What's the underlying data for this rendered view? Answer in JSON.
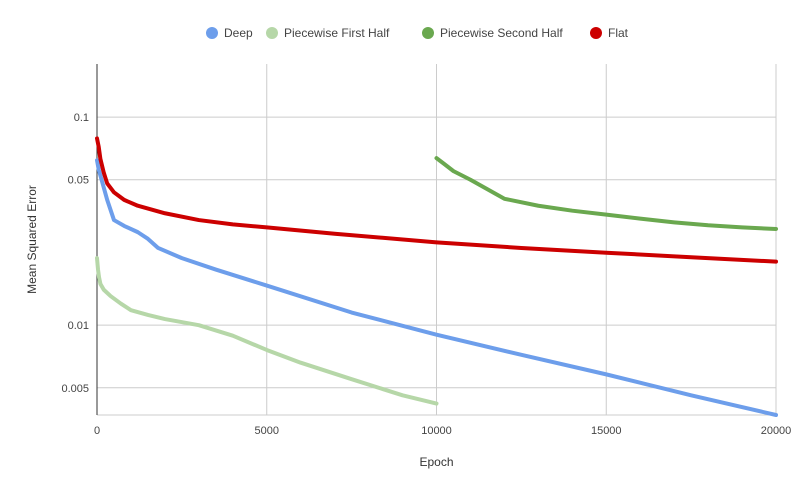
{
  "chart_data": {
    "type": "line",
    "title": "",
    "xlabel": "Epoch",
    "ylabel": "Mean Squared Error",
    "x_scale": "linear",
    "y_scale": "log",
    "xlim": [
      0,
      20000
    ],
    "ylim": [
      0.0037,
      0.18
    ],
    "x_ticks": [
      0,
      5000,
      10000,
      15000,
      20000
    ],
    "x_tick_labels": [
      "0",
      "5000",
      "10000",
      "15000",
      "20000"
    ],
    "y_ticks": [
      0.005,
      0.01,
      0.05,
      0.1
    ],
    "y_tick_labels": [
      "0.005",
      "0.01",
      "0.05",
      "0.1"
    ],
    "grid": true,
    "legend": "top-center",
    "series": [
      {
        "name": "Deep",
        "color": "#6d9eeb",
        "x": [
          0,
          50,
          150,
          300,
          500,
          800,
          1200,
          1500,
          1800,
          2500,
          3500,
          5000,
          7500,
          10000,
          12500,
          15000,
          17500,
          20000
        ],
        "y": [
          0.062,
          0.056,
          0.049,
          0.04,
          0.032,
          0.03,
          0.028,
          0.026,
          0.0235,
          0.021,
          0.0185,
          0.0155,
          0.0115,
          0.009,
          0.0072,
          0.0058,
          0.0046,
          0.0037
        ]
      },
      {
        "name": "Piecewise First Half",
        "color": "#b6d7a8",
        "x": [
          0,
          30,
          60,
          100,
          200,
          400,
          700,
          1000,
          1500,
          2000,
          3000,
          4000,
          5000,
          6000,
          7500,
          9000,
          10000
        ],
        "y": [
          0.021,
          0.0185,
          0.017,
          0.0158,
          0.0148,
          0.0138,
          0.0127,
          0.0118,
          0.0112,
          0.0107,
          0.01,
          0.0089,
          0.0076,
          0.0066,
          0.0055,
          0.0046,
          0.0042
        ]
      },
      {
        "name": "Piecewise Second Half",
        "color": "#6aa84f",
        "x": [
          10000,
          10200,
          10500,
          11000,
          11500,
          12000,
          13000,
          14000,
          15000,
          16000,
          17000,
          18000,
          19000,
          20000
        ],
        "y": [
          0.0635,
          0.06,
          0.055,
          0.05,
          0.045,
          0.0405,
          0.0375,
          0.0355,
          0.034,
          0.0325,
          0.0312,
          0.0302,
          0.0295,
          0.029
        ]
      },
      {
        "name": "Flat",
        "color": "#cc0000",
        "x": [
          0,
          50,
          100,
          200,
          300,
          500,
          800,
          1200,
          2000,
          3000,
          4000,
          5000,
          7000,
          10000,
          12500,
          15000,
          17500,
          20000
        ],
        "y": [
          0.079,
          0.072,
          0.063,
          0.054,
          0.048,
          0.0435,
          0.04,
          0.0375,
          0.0345,
          0.032,
          0.0305,
          0.0295,
          0.0275,
          0.025,
          0.0235,
          0.0223,
          0.0212,
          0.0202
        ]
      }
    ]
  }
}
